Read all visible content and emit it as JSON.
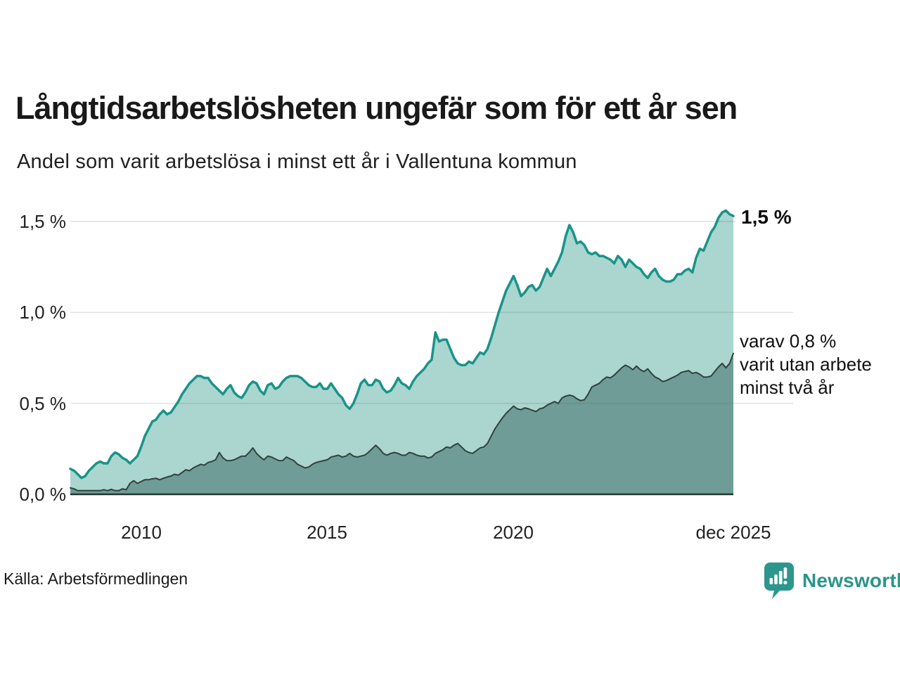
{
  "chart_data": {
    "type": "area",
    "title": "Långtidsarbetslösheten ungefär som för ett år sen",
    "subtitle": "Andel som varit arbetslösa i minst ett år i Vallentuna kommun",
    "legend_position": "end-of-line annotations",
    "grid": "horizontal gridlines on",
    "x_axis": {
      "min_year": 2008.1,
      "max_year": 2025.92,
      "tick_years": [
        2010,
        2015,
        2020,
        2025.92
      ],
      "tick_labels": [
        "2010",
        "2015",
        "2020",
        "dec 2025"
      ]
    },
    "y_axis": {
      "unit": "%",
      "ylim": [
        0,
        1.62
      ],
      "tick_values": [
        0,
        0.5,
        1.0,
        1.5
      ],
      "tick_labels": [
        "0,0 %",
        "0,5 %",
        "1,0 %",
        "1,5 %"
      ]
    },
    "series": [
      {
        "name": "Andel arbetslösa minst ett år",
        "line_color": "#18948a",
        "fill_color": "#abd5cf",
        "line_width": 3.5,
        "end_value": 1.5,
        "end_label": "1,5 %",
        "start_year": 2008.1,
        "end_year": 2025.92,
        "values": [
          0.14,
          0.13,
          0.11,
          0.09,
          0.1,
          0.13,
          0.15,
          0.17,
          0.18,
          0.17,
          0.17,
          0.21,
          0.23,
          0.22,
          0.2,
          0.19,
          0.17,
          0.19,
          0.21,
          0.26,
          0.32,
          0.36,
          0.4,
          0.41,
          0.44,
          0.46,
          0.44,
          0.45,
          0.48,
          0.51,
          0.55,
          0.58,
          0.61,
          0.63,
          0.65,
          0.65,
          0.64,
          0.64,
          0.61,
          0.59,
          0.57,
          0.55,
          0.58,
          0.6,
          0.56,
          0.54,
          0.53,
          0.56,
          0.6,
          0.62,
          0.61,
          0.57,
          0.55,
          0.6,
          0.61,
          0.58,
          0.59,
          0.62,
          0.64,
          0.65,
          0.65,
          0.65,
          0.64,
          0.62,
          0.6,
          0.59,
          0.59,
          0.61,
          0.58,
          0.58,
          0.61,
          0.58,
          0.55,
          0.53,
          0.49,
          0.47,
          0.5,
          0.55,
          0.61,
          0.63,
          0.6,
          0.6,
          0.63,
          0.62,
          0.58,
          0.56,
          0.57,
          0.6,
          0.64,
          0.61,
          0.6,
          0.58,
          0.62,
          0.65,
          0.67,
          0.69,
          0.72,
          0.74,
          0.89,
          0.84,
          0.85,
          0.85,
          0.8,
          0.75,
          0.72,
          0.71,
          0.71,
          0.73,
          0.72,
          0.75,
          0.78,
          0.77,
          0.8,
          0.86,
          0.93,
          1.0,
          1.06,
          1.12,
          1.16,
          1.2,
          1.15,
          1.09,
          1.11,
          1.14,
          1.15,
          1.12,
          1.14,
          1.19,
          1.24,
          1.2,
          1.24,
          1.28,
          1.33,
          1.42,
          1.48,
          1.44,
          1.38,
          1.39,
          1.37,
          1.33,
          1.32,
          1.33,
          1.31,
          1.31,
          1.3,
          1.29,
          1.27,
          1.31,
          1.29,
          1.25,
          1.29,
          1.27,
          1.25,
          1.24,
          1.21,
          1.19,
          1.22,
          1.24,
          1.2,
          1.18,
          1.17,
          1.17,
          1.18,
          1.21,
          1.21,
          1.23,
          1.24,
          1.22,
          1.3,
          1.35,
          1.34,
          1.39,
          1.44,
          1.47,
          1.52,
          1.55,
          1.56,
          1.54,
          1.53
        ]
      },
      {
        "name": "varav utan arbete minst två år",
        "line_color": "#30423e",
        "fill_color": "#6f9c96",
        "line_width": 2,
        "end_value": 0.8,
        "end_label": "varav 0,8 %\nvarit utan arbete\nminst två år",
        "start_year": 2008.1,
        "end_year": 2025.92,
        "values": [
          0.035,
          0.03,
          0.02,
          0.02,
          0.02,
          0.02,
          0.02,
          0.02,
          0.02,
          0.025,
          0.02,
          0.027,
          0.02,
          0.02,
          0.03,
          0.025,
          0.06,
          0.075,
          0.06,
          0.07,
          0.08,
          0.08,
          0.085,
          0.088,
          0.08,
          0.088,
          0.095,
          0.1,
          0.11,
          0.105,
          0.12,
          0.135,
          0.13,
          0.145,
          0.155,
          0.165,
          0.16,
          0.175,
          0.18,
          0.19,
          0.23,
          0.2,
          0.185,
          0.185,
          0.19,
          0.2,
          0.21,
          0.21,
          0.23,
          0.255,
          0.225,
          0.205,
          0.19,
          0.21,
          0.205,
          0.195,
          0.185,
          0.185,
          0.205,
          0.195,
          0.185,
          0.165,
          0.155,
          0.145,
          0.15,
          0.165,
          0.175,
          0.18,
          0.185,
          0.19,
          0.205,
          0.21,
          0.215,
          0.205,
          0.21,
          0.225,
          0.21,
          0.205,
          0.21,
          0.215,
          0.23,
          0.25,
          0.27,
          0.25,
          0.225,
          0.215,
          0.225,
          0.23,
          0.225,
          0.215,
          0.215,
          0.23,
          0.225,
          0.215,
          0.21,
          0.21,
          0.2,
          0.205,
          0.225,
          0.235,
          0.245,
          0.26,
          0.255,
          0.27,
          0.28,
          0.26,
          0.24,
          0.23,
          0.225,
          0.24,
          0.255,
          0.26,
          0.28,
          0.32,
          0.36,
          0.39,
          0.42,
          0.445,
          0.465,
          0.485,
          0.47,
          0.465,
          0.475,
          0.47,
          0.462,
          0.455,
          0.47,
          0.475,
          0.49,
          0.5,
          0.51,
          0.5,
          0.53,
          0.54,
          0.545,
          0.54,
          0.525,
          0.515,
          0.52,
          0.55,
          0.59,
          0.6,
          0.61,
          0.63,
          0.645,
          0.64,
          0.655,
          0.675,
          0.695,
          0.71,
          0.7,
          0.685,
          0.705,
          0.685,
          0.675,
          0.69,
          0.665,
          0.645,
          0.635,
          0.62,
          0.625,
          0.635,
          0.645,
          0.655,
          0.67,
          0.675,
          0.68,
          0.665,
          0.67,
          0.66,
          0.645,
          0.645,
          0.65,
          0.675,
          0.7,
          0.72,
          0.695,
          0.72,
          0.775
        ]
      }
    ],
    "annotations": {
      "end_value_label": "1,5 %",
      "secondary_label": "varav 0,8 %\nvarit utan arbete\nminst två år"
    }
  },
  "footer": {
    "source": "Källa: Arbetsförmedlingen",
    "brand": "Newsworthy",
    "brand_color": "#2b948b"
  }
}
